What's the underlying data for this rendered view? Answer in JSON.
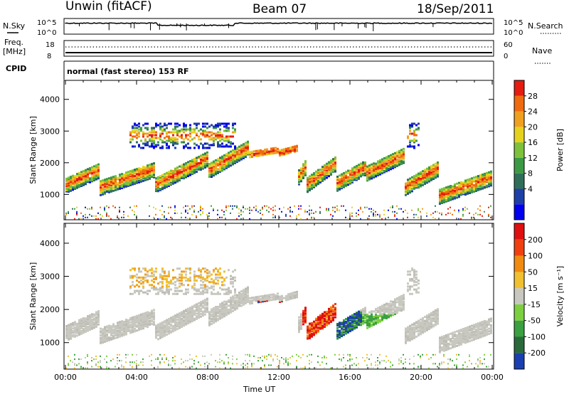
{
  "header": {
    "station": "Unwin (fitACF)",
    "beam": "Beam 07",
    "date": "18/Sep/2011"
  },
  "status_panels": {
    "nsky_label": "N.Sky",
    "nsky_ticks": [
      "10^5",
      "10^0"
    ],
    "nsearch_label": "N.Search",
    "nsearch_ticks": [
      "10^5",
      "10^0"
    ],
    "freq_label": "Freq.",
    "freq_unit": "[MHz]",
    "freq_ticks": [
      "18",
      "8"
    ],
    "nave_label": "Nave",
    "nave_ticks": [
      "60",
      "0"
    ],
    "cpid_label": "CPID",
    "cpid_text": "normal (fast stereo) 153 RF"
  },
  "chart_data": [
    {
      "type": "heatmap",
      "name": "power-panel",
      "ylabel": "Slant Range [km]",
      "yticks": [
        "4000",
        "3000",
        "2000",
        "1000"
      ],
      "ylim": [
        200,
        4600
      ],
      "xlim": [
        "00:00",
        "24:00"
      ],
      "colorbar_label": "Power [dB]",
      "colorbar_ticks": [
        "28",
        "24",
        "20",
        "16",
        "12",
        "8",
        "4"
      ],
      "colors": [
        "#0000ee",
        "#1f3fa8",
        "#2f6f5a",
        "#3c9a45",
        "#7dc23a",
        "#e6d21e",
        "#f0a020",
        "#f06a10",
        "#e51c10"
      ]
    },
    {
      "type": "heatmap",
      "name": "velocity-panel",
      "ylabel": "Slant Range [km]",
      "yticks": [
        "4000",
        "3000",
        "2000",
        "1000"
      ],
      "ylim": [
        200,
        4600
      ],
      "xlim": [
        "00:00",
        "24:00"
      ],
      "xlabel": "Time UT",
      "xticks": [
        "00:00",
        "04:00",
        "08:00",
        "12:00",
        "16:00",
        "20:00",
        "00:00"
      ],
      "colorbar_label": "Velocity [m s⁻¹]",
      "colorbar_ticks": [
        "200",
        "100",
        "50",
        "15",
        "-15",
        "-50",
        "-100",
        "-200"
      ],
      "colors": [
        "#1a3fb0",
        "#2a6a3a",
        "#3aa040",
        "#7cd040",
        "#c8c8c0",
        "#f0c030",
        "#f08a10",
        "#f04010",
        "#e01010"
      ]
    }
  ]
}
